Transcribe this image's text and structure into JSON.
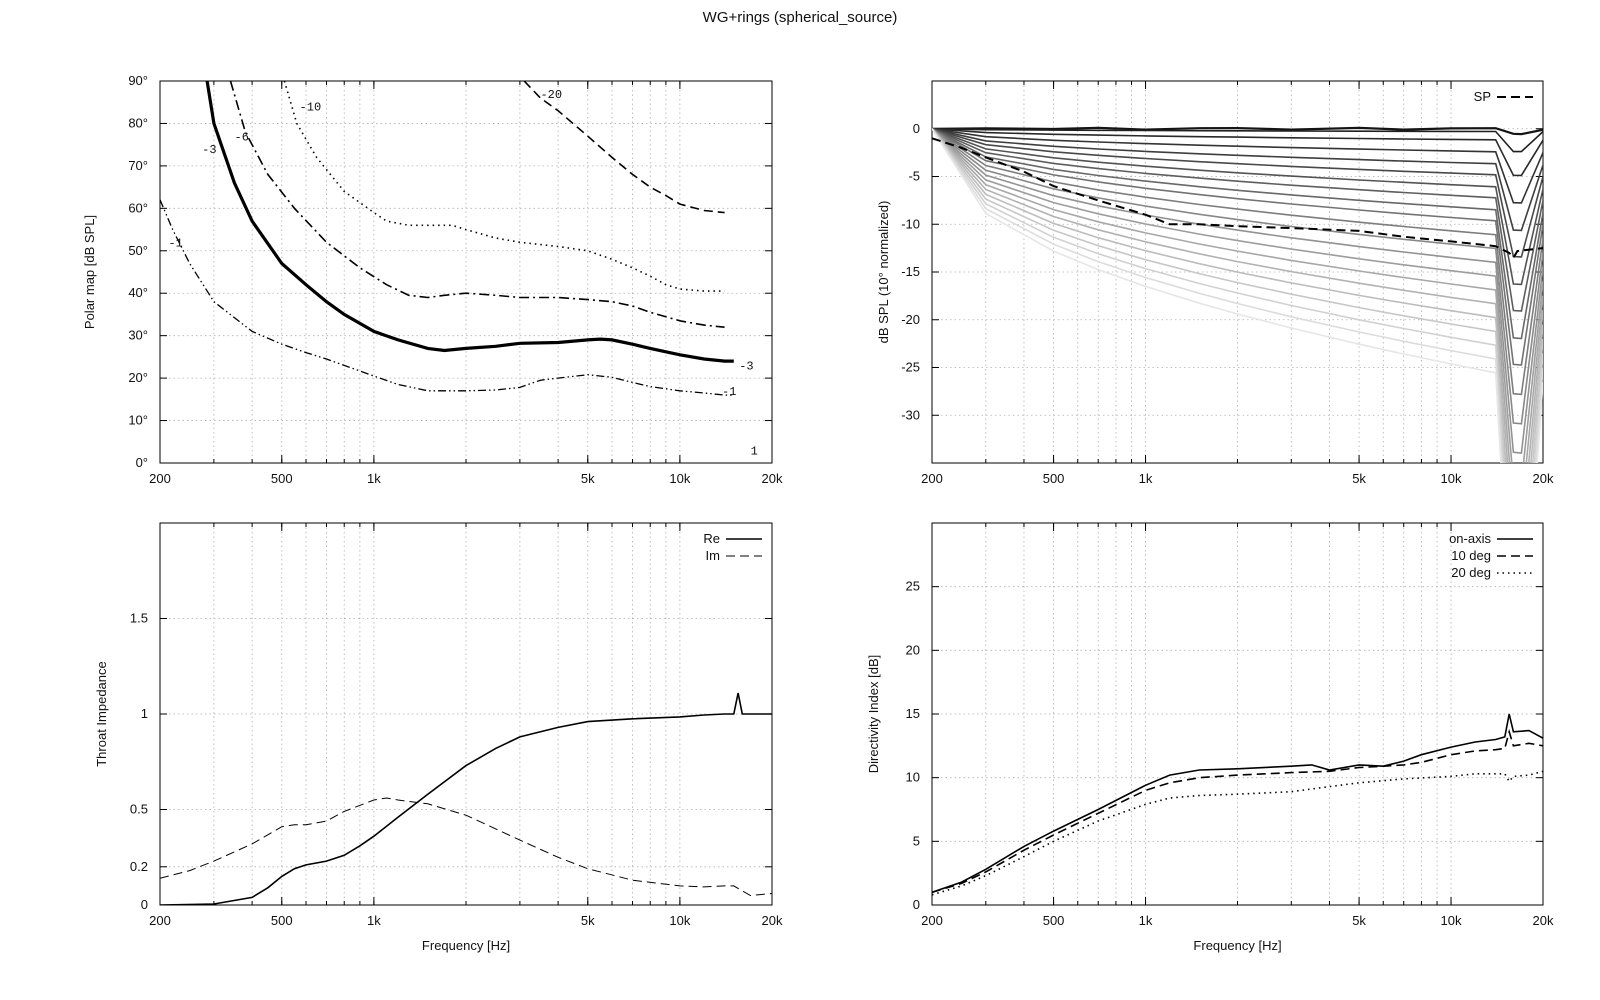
{
  "figure": {
    "title": "WG+rings (spherical_source)"
  },
  "chart_data": [
    {
      "type": "line",
      "id": "polar",
      "title": "",
      "xlabel": "",
      "ylabel": "Polar map [dB SPL]",
      "xscale": "log",
      "xlim": [
        200,
        20000
      ],
      "ylim": [
        0,
        90
      ],
      "xticks": [
        {
          "v": 200,
          "label": "200"
        },
        {
          "v": 500,
          "label": "500"
        },
        {
          "v": 1000,
          "label": "1k"
        },
        {
          "v": 5000,
          "label": "5k"
        },
        {
          "v": 10000,
          "label": "10k"
        },
        {
          "v": 20000,
          "label": "20k"
        }
      ],
      "yticks": [
        {
          "v": 0,
          "label": "0°"
        },
        {
          "v": 10,
          "label": "10°"
        },
        {
          "v": 20,
          "label": "20°"
        },
        {
          "v": 30,
          "label": "30°"
        },
        {
          "v": 40,
          "label": "40°"
        },
        {
          "v": 50,
          "label": "50°"
        },
        {
          "v": 60,
          "label": "60°"
        },
        {
          "v": 70,
          "label": "70°"
        },
        {
          "v": 80,
          "label": "80°"
        },
        {
          "v": 90,
          "label": "90°"
        }
      ],
      "series": [
        {
          "name": "-1",
          "style": "dashdotdot",
          "width": 1.3,
          "x": [
            200,
            220,
            250,
            300,
            400,
            500,
            600,
            700,
            800,
            1000,
            1200,
            1500,
            2000,
            2500,
            3000,
            3500,
            4000,
            5000,
            6000,
            7000,
            8000,
            10000,
            12000,
            14000,
            15000
          ],
          "y": [
            62,
            55,
            47,
            38,
            31,
            28,
            26,
            24.5,
            23,
            20.5,
            18.5,
            17,
            17,
            17.2,
            17.8,
            19.5,
            20,
            20.8,
            20.2,
            19,
            18,
            17,
            16.5,
            16,
            16
          ]
        },
        {
          "name": "-3",
          "style": "solid",
          "width": 3.2,
          "x": [
            285,
            300,
            350,
            400,
            500,
            600,
            700,
            800,
            1000,
            1200,
            1500,
            1700,
            2000,
            2500,
            3000,
            4000,
            5000,
            5500,
            6000,
            7000,
            8000,
            10000,
            12000,
            14000,
            15000
          ],
          "y": [
            90,
            80,
            66,
            57,
            47,
            42,
            38,
            35,
            31,
            29,
            27,
            26.5,
            27,
            27.5,
            28.2,
            28.4,
            29,
            29.2,
            29,
            28,
            27,
            25.5,
            24.5,
            24,
            24
          ]
        },
        {
          "name": "-6",
          "style": "dashdot",
          "width": 1.6,
          "x": [
            340,
            380,
            450,
            550,
            700,
            900,
            1100,
            1300,
            1500,
            1700,
            2000,
            2500,
            3000,
            4000,
            5000,
            6000,
            7000,
            8000,
            10000,
            12000,
            14000
          ],
          "y": [
            90,
            78,
            68,
            60,
            52,
            46,
            42,
            39.5,
            39,
            39.5,
            40,
            39.5,
            39,
            39,
            38.5,
            38,
            37,
            35.5,
            33.5,
            32.5,
            32
          ]
        },
        {
          "name": "-10",
          "style": "dotted",
          "width": 1.6,
          "x": [
            510,
            560,
            650,
            800,
            1000,
            1100,
            1300,
            1500,
            1800,
            2000,
            2500,
            3000,
            4000,
            5000,
            6000,
            7000,
            8000,
            9000,
            10000,
            12000,
            14000
          ],
          "y": [
            90,
            80,
            72,
            64,
            59,
            57,
            56,
            56,
            56,
            55,
            53,
            52,
            51,
            50,
            48,
            46,
            44,
            42,
            41,
            40.5,
            40.5
          ]
        },
        {
          "name": "-20",
          "style": "dashed",
          "width": 1.6,
          "x": [
            3100,
            3500,
            4000,
            5000,
            6000,
            7000,
            8000,
            9000,
            10000,
            12000,
            14000
          ],
          "y": [
            90,
            86,
            83,
            77,
            72,
            68,
            65,
            63,
            61,
            59.5,
            59
          ]
        }
      ],
      "contour_labels": [
        {
          "text": "-1",
          "x": 225,
          "y": 51
        },
        {
          "text": "-3",
          "x": 290,
          "y": 73
        },
        {
          "text": "-6",
          "x": 370,
          "y": 76
        },
        {
          "text": "-10",
          "x": 620,
          "y": 83
        },
        {
          "text": "-20",
          "x": 3800,
          "y": 86
        },
        {
          "text": "-1",
          "x": 14500,
          "y": 16
        },
        {
          "text": "-3",
          "x": 16500,
          "y": 22
        },
        {
          "text": "1",
          "x": 17500,
          "y": 2
        }
      ]
    },
    {
      "type": "line",
      "id": "spl",
      "title": "",
      "xlabel": "",
      "ylabel": "dB SPL (10° normalized)",
      "xscale": "log",
      "xlim": [
        200,
        20000
      ],
      "ylim": [
        -35,
        5
      ],
      "xticks": [
        {
          "v": 200,
          "label": "200"
        },
        {
          "v": 500,
          "label": "500"
        },
        {
          "v": 1000,
          "label": "1k"
        },
        {
          "v": 5000,
          "label": "5k"
        },
        {
          "v": 10000,
          "label": "10k"
        },
        {
          "v": 20000,
          "label": "20k"
        }
      ],
      "yticks": [
        {
          "v": 0,
          "label": "0"
        },
        {
          "v": -5,
          "label": "-5"
        },
        {
          "v": -10,
          "label": "-10"
        },
        {
          "v": -15,
          "label": "-15"
        },
        {
          "v": -20,
          "label": "-20"
        },
        {
          "v": -25,
          "label": "-25"
        },
        {
          "v": -30,
          "label": "-30"
        }
      ],
      "legend": {
        "position": "top-right",
        "entries": [
          "SP"
        ]
      },
      "x": [
        200,
        300,
        500,
        700,
        1000,
        1500,
        2000,
        3000,
        5000,
        7000,
        10000,
        14000,
        16000,
        17000,
        20000
      ],
      "family_levels": [
        0,
        -0.3,
        -1.2,
        -2.5,
        -3.8,
        -5,
        -6.3,
        -7.5,
        -8.8,
        -10,
        -11.5,
        -13,
        -14.5,
        -16,
        -17.5,
        -19,
        -20.5,
        -22,
        -23.5,
        -25,
        -26.5
      ],
      "series": [
        {
          "name": "SP",
          "style": "dashed",
          "width": 2,
          "x": [
            200,
            250,
            300,
            400,
            500,
            700,
            1000,
            1200,
            1500,
            2000,
            3000,
            5000,
            7000,
            10000,
            14000,
            15500,
            16000,
            16500,
            20000
          ],
          "y": [
            -1,
            -2,
            -3,
            -4.5,
            -6,
            -7.5,
            -9,
            -10,
            -10,
            -10.2,
            -10.4,
            -10.7,
            -11.3,
            -11.8,
            -12.3,
            -13,
            -13.5,
            -12.8,
            -12.5
          ]
        }
      ]
    },
    {
      "type": "line",
      "id": "impedance",
      "title": "",
      "xlabel": "Frequency [Hz]",
      "ylabel": "Throat Impedance",
      "xscale": "log",
      "xlim": [
        200,
        20000
      ],
      "ylim": [
        0,
        2
      ],
      "xticks": [
        {
          "v": 200,
          "label": "200"
        },
        {
          "v": 500,
          "label": "500"
        },
        {
          "v": 1000,
          "label": "1k"
        },
        {
          "v": 5000,
          "label": "5k"
        },
        {
          "v": 10000,
          "label": "10k"
        },
        {
          "v": 20000,
          "label": "20k"
        }
      ],
      "yticks": [
        {
          "v": 0,
          "label": "0"
        },
        {
          "v": 0.2,
          "label": "0.2"
        },
        {
          "v": 0.5,
          "label": "0.5"
        },
        {
          "v": 1,
          "label": "1"
        },
        {
          "v": 1.5,
          "label": "1.5"
        }
      ],
      "legend": {
        "position": "top-right",
        "entries": [
          "Re",
          "Im"
        ]
      },
      "series": [
        {
          "name": "Re",
          "style": "solid",
          "width": 1.6,
          "x": [
            200,
            300,
            400,
            450,
            500,
            550,
            600,
            700,
            800,
            900,
            1000,
            1200,
            1500,
            2000,
            2500,
            3000,
            4000,
            5000,
            7000,
            10000,
            12000,
            14000,
            15000,
            15500,
            16000,
            20000
          ],
          "y": [
            0,
            0.005,
            0.04,
            0.09,
            0.15,
            0.19,
            0.21,
            0.23,
            0.26,
            0.31,
            0.36,
            0.46,
            0.58,
            0.73,
            0.82,
            0.88,
            0.93,
            0.96,
            0.975,
            0.985,
            0.995,
            1.0,
            1.0,
            1.11,
            1.0,
            1.0
          ]
        },
        {
          "name": "Im",
          "style": "dashed",
          "width": 1,
          "x": [
            200,
            250,
            300,
            400,
            500,
            550,
            600,
            700,
            800,
            1000,
            1100,
            1200,
            1500,
            2000,
            3000,
            4000,
            5000,
            7000,
            10000,
            12000,
            14000,
            15000,
            17000,
            20000
          ],
          "y": [
            0.14,
            0.18,
            0.23,
            0.32,
            0.41,
            0.42,
            0.42,
            0.44,
            0.49,
            0.55,
            0.56,
            0.55,
            0.53,
            0.47,
            0.34,
            0.25,
            0.19,
            0.13,
            0.1,
            0.095,
            0.1,
            0.1,
            0.05,
            0.06
          ]
        }
      ]
    },
    {
      "type": "line",
      "id": "di",
      "title": "",
      "xlabel": "Frequency [Hz]",
      "ylabel": "Directivity Index [dB]",
      "xscale": "log",
      "xlim": [
        200,
        20000
      ],
      "ylim": [
        0,
        30
      ],
      "xticks": [
        {
          "v": 200,
          "label": "200"
        },
        {
          "v": 500,
          "label": "500"
        },
        {
          "v": 1000,
          "label": "1k"
        },
        {
          "v": 5000,
          "label": "5k"
        },
        {
          "v": 10000,
          "label": "10k"
        },
        {
          "v": 20000,
          "label": "20k"
        }
      ],
      "yticks": [
        {
          "v": 0,
          "label": "0"
        },
        {
          "v": 5,
          "label": "5"
        },
        {
          "v": 10,
          "label": "10"
        },
        {
          "v": 15,
          "label": "15"
        },
        {
          "v": 20,
          "label": "20"
        },
        {
          "v": 25,
          "label": "25"
        }
      ],
      "legend": {
        "position": "top-right",
        "entries": [
          "on-axis",
          "10 deg",
          "20 deg"
        ]
      },
      "series": [
        {
          "name": "on-axis",
          "style": "solid",
          "width": 1.6,
          "x": [
            200,
            250,
            300,
            400,
            500,
            700,
            1000,
            1200,
            1500,
            2000,
            3000,
            3500,
            4000,
            5000,
            6000,
            7000,
            8000,
            10000,
            12000,
            14000,
            15000,
            15500,
            16000,
            18000,
            20000
          ],
          "y": [
            1,
            1.8,
            2.8,
            4.6,
            5.8,
            7.5,
            9.4,
            10.2,
            10.6,
            10.7,
            10.9,
            11,
            10.6,
            11,
            10.9,
            11.3,
            11.8,
            12.4,
            12.8,
            13,
            13.2,
            15,
            13.6,
            13.7,
            13.1
          ]
        },
        {
          "name": "10 deg",
          "style": "dashed",
          "width": 1.6,
          "x": [
            200,
            250,
            300,
            400,
            500,
            700,
            1000,
            1200,
            1500,
            2000,
            3000,
            4000,
            5000,
            6000,
            7000,
            8000,
            10000,
            12000,
            14000,
            15000,
            15500,
            16000,
            18000,
            20000
          ],
          "y": [
            1,
            1.7,
            2.6,
            4.3,
            5.5,
            7.2,
            9,
            9.6,
            10,
            10.2,
            10.4,
            10.5,
            10.8,
            10.9,
            11,
            11.2,
            11.8,
            12.1,
            12.2,
            12.3,
            13.6,
            12.5,
            12.7,
            12.5
          ]
        },
        {
          "name": "20 deg",
          "style": "dotted",
          "width": 1.6,
          "x": [
            200,
            250,
            300,
            400,
            500,
            700,
            1000,
            1200,
            1500,
            2000,
            3000,
            4000,
            5000,
            7000,
            10000,
            12000,
            14000,
            15000,
            15500,
            16000,
            18000,
            20000
          ],
          "y": [
            0.8,
            1.5,
            2.3,
            3.8,
            5,
            6.6,
            7.9,
            8.4,
            8.6,
            8.7,
            8.9,
            9.3,
            9.6,
            9.9,
            10.1,
            10.3,
            10.3,
            10.3,
            9.7,
            10.1,
            10.2,
            10.5
          ]
        }
      ]
    }
  ]
}
